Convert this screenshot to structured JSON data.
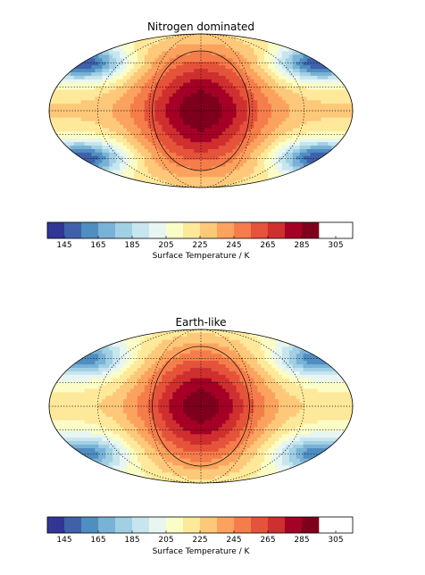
{
  "chart_data": [
    {
      "type": "heatmap",
      "title": "Nitrogen dominated",
      "projection": "Robinson (elliptical map)",
      "colorbar": {
        "label": "Surface Temperature / K",
        "ticks": [
          145,
          165,
          185,
          205,
          225,
          245,
          265,
          285,
          305
        ],
        "levels": [
          135,
          145,
          155,
          165,
          175,
          185,
          195,
          205,
          215,
          225,
          235,
          245,
          255,
          265,
          275,
          285,
          295,
          305,
          315
        ],
        "colors": [
          "#313695",
          "#4061aa",
          "#4f8ec1",
          "#79b2d6",
          "#a1cfe4",
          "#c6e5ef",
          "#e8f6f1",
          "#fbfdc6",
          "#fee99b",
          "#fdc87a",
          "#fba35e",
          "#f47d4b",
          "#e5533a",
          "#cf2f2e",
          "#a50026",
          "#7f001c"
        ]
      },
      "substellar_temperature_K": 292,
      "antistellar_temperature_K": 218,
      "polar_nightside_min_K": 150
    },
    {
      "type": "heatmap",
      "title": "Earth-like",
      "projection": "Robinson (elliptical map)",
      "colorbar": {
        "label": "Surface Temperature / K",
        "ticks": [
          145,
          165,
          185,
          205,
          225,
          245,
          265,
          285,
          305
        ],
        "levels": [
          135,
          145,
          155,
          165,
          175,
          185,
          195,
          205,
          215,
          225,
          235,
          245,
          255,
          265,
          275,
          285,
          295,
          305,
          315
        ],
        "colors": [
          "#313695",
          "#4061aa",
          "#4f8ec1",
          "#79b2d6",
          "#a1cfe4",
          "#c6e5ef",
          "#e8f6f1",
          "#fbfdc6",
          "#fee99b",
          "#fdc87a",
          "#fba35e",
          "#f47d4b",
          "#e5533a",
          "#cf2f2e",
          "#a50026",
          "#7f001c"
        ]
      },
      "substellar_temperature_K": 290,
      "antistellar_temperature_K": 212,
      "polar_nightside_min_K": 160
    }
  ]
}
